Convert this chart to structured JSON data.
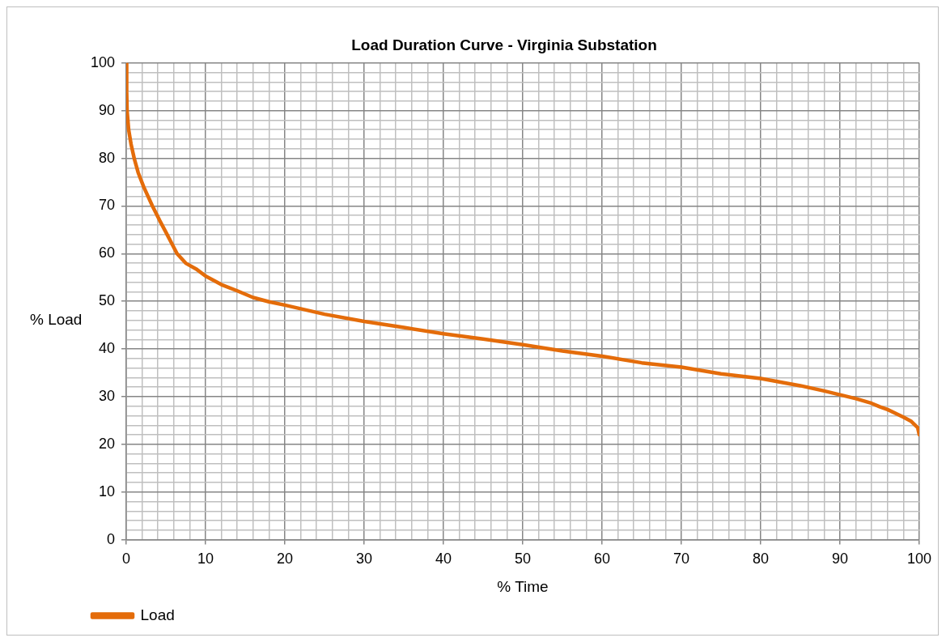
{
  "chart_data": {
    "type": "line",
    "title": "Load Duration Curve - Virginia Substation",
    "xlabel": "% Time",
    "ylabel": "% Load",
    "xlim": [
      0,
      100
    ],
    "ylim": [
      0,
      100
    ],
    "xticks": [
      0,
      {
        "value": 2,
        "label": null
      },
      {
        "value": 4,
        "label": null
      },
      {
        "value": 6,
        "label": null
      },
      {
        "value": 8,
        "label": null
      },
      10,
      {
        "value": 12,
        "label": null
      },
      {
        "value": 14,
        "label": null
      },
      {
        "value": 16,
        "label": null
      },
      {
        "value": 18,
        "label": null
      },
      20,
      {
        "value": 22,
        "label": null
      },
      {
        "value": 24,
        "label": null
      },
      {
        "value": 26,
        "label": null
      },
      {
        "value": 28,
        "label": null
      },
      30,
      {
        "value": 32,
        "label": null
      },
      {
        "value": 34,
        "label": null
      },
      {
        "value": 36,
        "label": null
      },
      {
        "value": 38,
        "label": null
      },
      40,
      {
        "value": 42,
        "label": null
      },
      {
        "value": 44,
        "label": null
      },
      {
        "value": 46,
        "label": null
      },
      {
        "value": 48,
        "label": null
      },
      50,
      {
        "value": 52,
        "label": null
      },
      {
        "value": 54,
        "label": null
      },
      {
        "value": 56,
        "label": null
      },
      {
        "value": 58,
        "label": null
      },
      60,
      {
        "value": 62,
        "label": null
      },
      {
        "value": 64,
        "label": null
      },
      {
        "value": 66,
        "label": null
      },
      {
        "value": 68,
        "label": null
      },
      70,
      {
        "value": 72,
        "label": null
      },
      {
        "value": 74,
        "label": null
      },
      {
        "value": 76,
        "label": null
      },
      {
        "value": 78,
        "label": null
      },
      80,
      {
        "value": 82,
        "label": null
      },
      {
        "value": 84,
        "label": null
      },
      {
        "value": 86,
        "label": null
      },
      {
        "value": 88,
        "label": null
      },
      90,
      {
        "value": 92,
        "label": null
      },
      {
        "value": 94,
        "label": null
      },
      {
        "value": 96,
        "label": null
      },
      {
        "value": 98,
        "label": null
      },
      100
    ],
    "yticks": [
      0,
      {
        "value": 2,
        "label": null
      },
      {
        "value": 4,
        "label": null
      },
      {
        "value": 6,
        "label": null
      },
      {
        "value": 8,
        "label": null
      },
      10,
      {
        "value": 12,
        "label": null
      },
      {
        "value": 14,
        "label": null
      },
      {
        "value": 16,
        "label": null
      },
      {
        "value": 18,
        "label": null
      },
      20,
      {
        "value": 22,
        "label": null
      },
      {
        "value": 24,
        "label": null
      },
      {
        "value": 26,
        "label": null
      },
      {
        "value": 28,
        "label": null
      },
      30,
      {
        "value": 32,
        "label": null
      },
      {
        "value": 34,
        "label": null
      },
      {
        "value": 36,
        "label": null
      },
      {
        "value": 38,
        "label": null
      },
      40,
      {
        "value": 42,
        "label": null
      },
      {
        "value": 44,
        "label": null
      },
      {
        "value": 46,
        "label": null
      },
      {
        "value": 48,
        "label": null
      },
      50,
      {
        "value": 52,
        "label": null
      },
      {
        "value": 54,
        "label": null
      },
      {
        "value": 56,
        "label": null
      },
      {
        "value": 58,
        "label": null
      },
      60,
      {
        "value": 62,
        "label": null
      },
      {
        "value": 64,
        "label": null
      },
      {
        "value": 66,
        "label": null
      },
      {
        "value": 68,
        "label": null
      },
      70,
      {
        "value": 72,
        "label": null
      },
      {
        "value": 74,
        "label": null
      },
      {
        "value": 76,
        "label": null
      },
      {
        "value": 78,
        "label": null
      },
      80,
      {
        "value": 82,
        "label": null
      },
      {
        "value": 84,
        "label": null
      },
      {
        "value": 86,
        "label": null
      },
      {
        "value": 88,
        "label": null
      },
      90,
      {
        "value": 92,
        "label": null
      },
      {
        "value": 94,
        "label": null
      },
      {
        "value": 96,
        "label": null
      },
      {
        "value": 98,
        "label": null
      },
      100
    ],
    "grid": true,
    "legend": "bottom",
    "marker": "none",
    "line_style": "solid",
    "series": [
      {
        "name": "Load",
        "color": "#e46c0a",
        "x": [
          0,
          0.05,
          0.1,
          0.3,
          0.6,
          1,
          1.5,
          2.2,
          3.3,
          4.2,
          5,
          6.4,
          7.5,
          8.8,
          10,
          12,
          14,
          16,
          18,
          20,
          25,
          30,
          35,
          40,
          45,
          50,
          55,
          60,
          65,
          70,
          75,
          80,
          85,
          88,
          90,
          92,
          94,
          95,
          96,
          98,
          99,
          99.5,
          99.8,
          100
        ],
        "values": [
          100,
          94,
          90,
          86,
          83,
          80,
          77,
          74,
          70,
          67,
          64.5,
          60,
          58,
          56.8,
          55.3,
          53.5,
          52.2,
          50.8,
          49.9,
          49.2,
          47.3,
          45.8,
          44.5,
          43.2,
          42.1,
          40.9,
          39.6,
          38.5,
          37.1,
          36.2,
          34.8,
          33.8,
          32.3,
          31.2,
          30.4,
          29.6,
          28.6,
          27.9,
          27.3,
          25.7,
          24.8,
          24,
          23.5,
          22
        ]
      }
    ]
  }
}
